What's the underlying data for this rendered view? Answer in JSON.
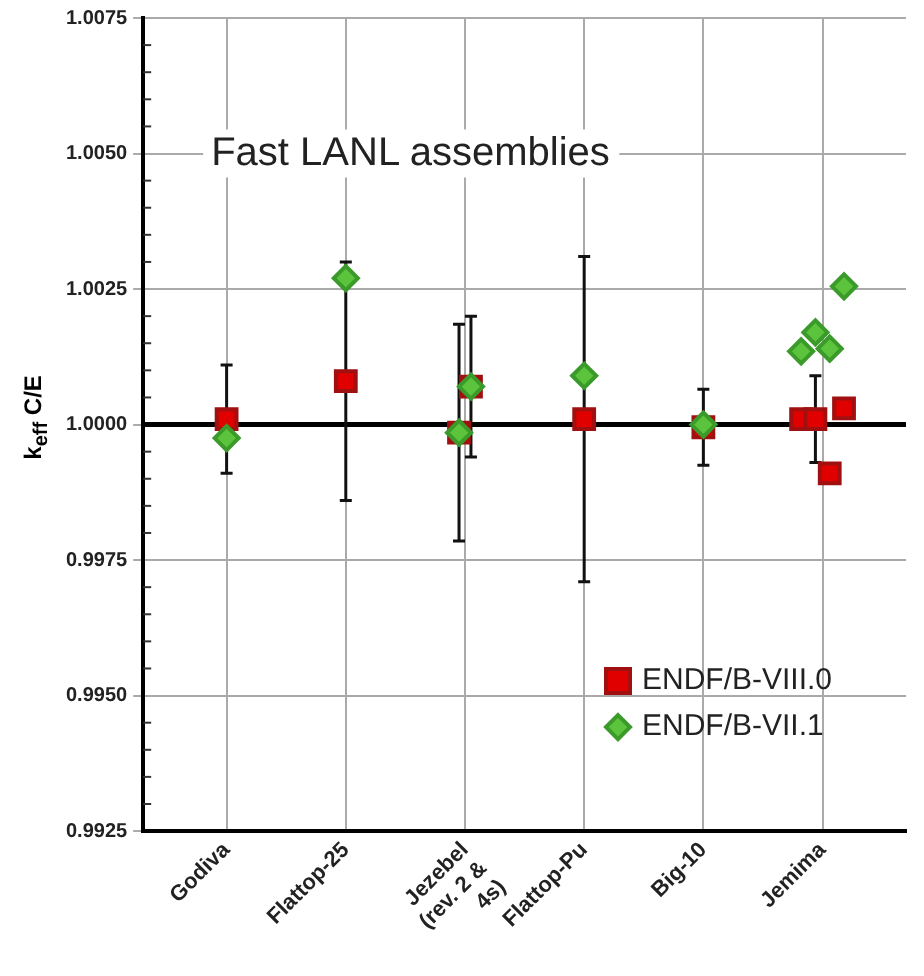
{
  "chart_data": {
    "type": "scatter",
    "title": "Fast LANL assemblies",
    "ylabel": "k$_{eff}$ C/E",
    "categories": [
      "Godiva",
      "Flattop-25",
      "Jezebel (rev. 2 & 4s)",
      "Flattop-Pu",
      "Big-10",
      "Jemima"
    ],
    "series": [
      {
        "name": "ENDF/B-VIII.0",
        "color": "#e00000",
        "marker": "square",
        "x": [
          "Godiva",
          "Flattop-25",
          "Jezebel (rev. 2 & 4s)",
          "Jezebel (rev. 2 & 4s)",
          "Flattop-Pu",
          "Big-10",
          "Jemima",
          "Jemima",
          "Jemima",
          "Jemima"
        ],
        "values": [
          1.0001,
          1.0008,
          0.99985,
          1.0007,
          1.0001,
          0.99995,
          1.0001,
          1.0001,
          0.9991,
          1.0003
        ],
        "errors": [
          0.001,
          0.0022,
          0.002,
          0.0013,
          0.003,
          0.0007,
          null,
          0.0008,
          null,
          null
        ]
      },
      {
        "name": "ENDF/B-VII.1",
        "color": "#5cc43c",
        "marker": "diamond",
        "x": [
          "Godiva",
          "Flattop-25",
          "Jezebel (rev. 2 & 4s)",
          "Jezebel (rev. 2 & 4s)",
          "Flattop-Pu",
          "Big-10",
          "Jemima",
          "Jemima",
          "Jemima",
          "Jemima"
        ],
        "values": [
          0.99975,
          1.0027,
          0.99985,
          1.0007,
          1.0009,
          1.0,
          1.00135,
          1.0017,
          1.0014,
          1.00255
        ]
      }
    ],
    "ylim": [
      0.9925,
      1.0075
    ],
    "yticks": [
      {
        "value": 0.9925,
        "label": "0.9925"
      },
      {
        "value": 0.995,
        "label": "0.9950"
      },
      {
        "value": 0.9975,
        "label": "0.9975"
      },
      {
        "value": 1.0,
        "label": "1.0000"
      },
      {
        "value": 1.0025,
        "label": "1.0025"
      },
      {
        "value": 1.005,
        "label": "1.0050"
      },
      {
        "value": 1.0075,
        "label": "1.0075"
      }
    ],
    "ref_lines": [
      {
        "axis": "y",
        "value": 1.0,
        "color": "#000000"
      }
    ],
    "grid": true,
    "legend": "bottom right"
  }
}
